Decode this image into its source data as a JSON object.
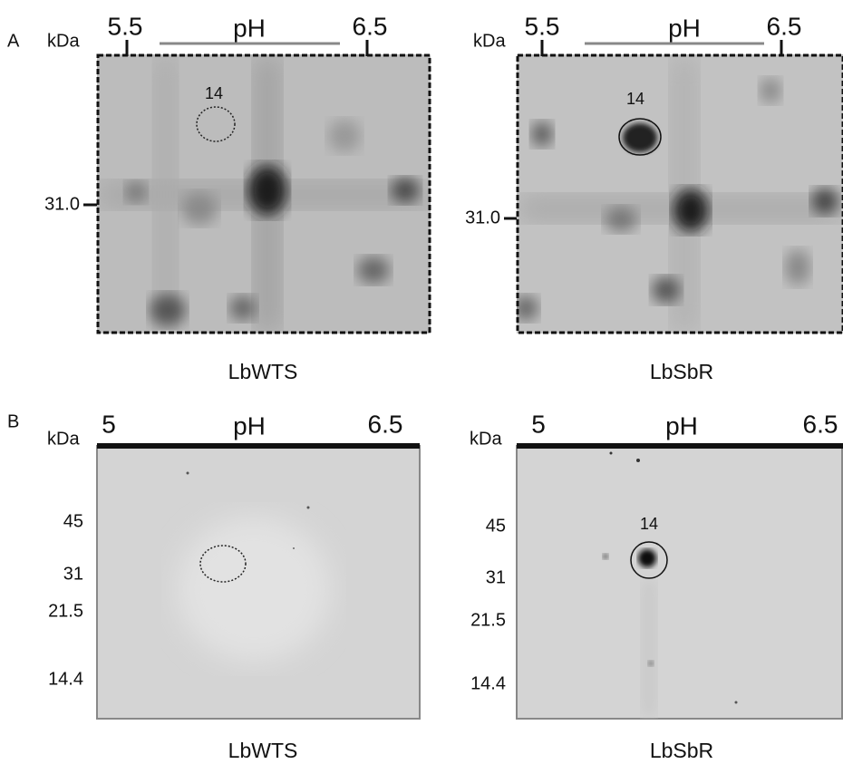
{
  "panels": [
    {
      "label": "A",
      "gels": [
        {
          "unit": "kDa",
          "ph_start": "5.5",
          "ph_label": "pH",
          "ph_end": "6.5",
          "markers": [
            "31.0"
          ],
          "spot": "14",
          "caption": "LbWTS"
        },
        {
          "unit": "kDa",
          "ph_start": "5.5",
          "ph_label": "pH",
          "ph_end": "6.5",
          "markers": [
            "31.0"
          ],
          "spot": "14",
          "caption": "LbSbR"
        }
      ]
    },
    {
      "label": "B",
      "gels": [
        {
          "unit": "kDa",
          "ph_start": "5",
          "ph_label": "pH",
          "ph_end": "6.5",
          "markers": [
            "45",
            "31",
            "21.5",
            "14.4"
          ],
          "caption": "LbWTS"
        },
        {
          "unit": "kDa",
          "ph_start": "5",
          "ph_label": "pH",
          "ph_end": "6.5",
          "markers": [
            "45",
            "31",
            "21.5",
            "14.4"
          ],
          "spot": "14",
          "caption": "LbSbR"
        }
      ]
    }
  ]
}
